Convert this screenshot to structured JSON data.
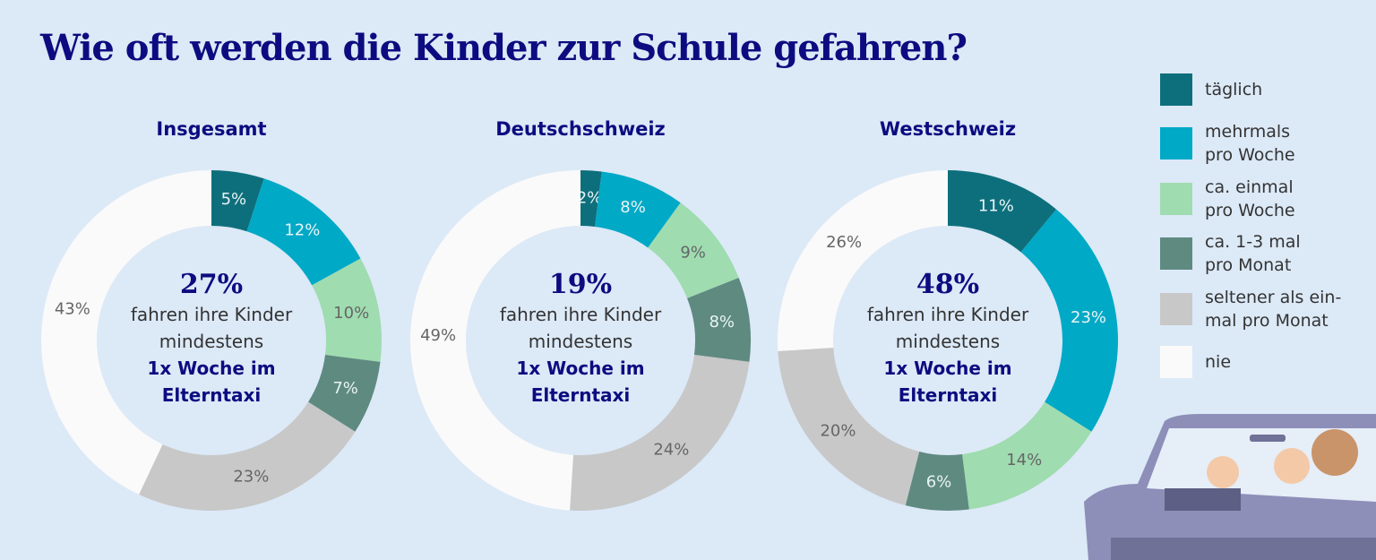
{
  "title": "Wie oft werden die Kinder zur Schule gefahren?",
  "legend": {
    "labels": [
      "täglich",
      "mehrmals\npro Woche",
      "ca. einmal\npro Woche",
      "ca. 1-3 mal\npro Monat",
      "seltener als ein-\nmal pro Monat",
      "nie"
    ],
    "colors": [
      "#0e6f7c",
      "#00a9c6",
      "#9fdcb0",
      "#5f8a80",
      "#c8c8c8",
      "#fafafa"
    ]
  },
  "chart_data": [
    {
      "type": "donut",
      "title": "Insgesamt",
      "values": [
        5,
        12,
        10,
        7,
        23,
        43
      ],
      "value_labels": [
        "5%",
        "12%",
        "10%",
        "7%",
        "23%",
        "43%"
      ],
      "highlight": "27%",
      "caption": "fahren ihre Kinder\nmindestens",
      "caption_bold": "1x Woche im\nElterntaxi"
    },
    {
      "type": "donut",
      "title": "Deutschschweiz",
      "values": [
        2,
        8,
        9,
        8,
        24,
        49
      ],
      "value_labels": [
        "2%",
        "8%",
        "9%",
        "8%",
        "24%",
        "49%"
      ],
      "highlight": "19%",
      "caption": "fahren ihre Kinder\nmindestens",
      "caption_bold": "1x Woche im\nElterntaxi"
    },
    {
      "type": "donut",
      "title": "Westschweiz",
      "values": [
        11,
        23,
        14,
        6,
        20,
        26
      ],
      "value_labels": [
        "11%",
        "23%",
        "14%",
        "6%",
        "20%",
        "26%"
      ],
      "highlight": "48%",
      "caption": "fahren ihre Kinder\nmindestens",
      "caption_bold": "1x Woche im\nElterntaxi"
    }
  ]
}
